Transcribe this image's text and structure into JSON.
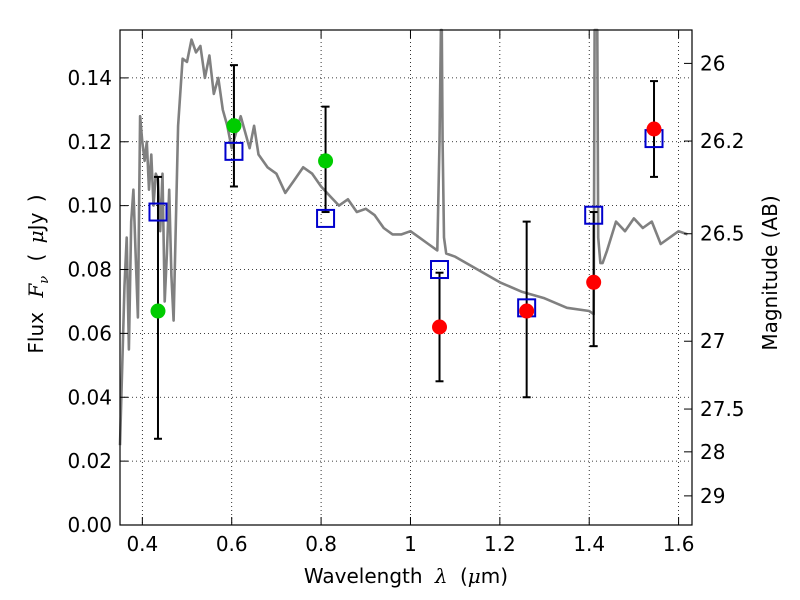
{
  "chart_data": {
    "type": "scatter",
    "xlabel_parts": [
      "Wavelength",
      "λ",
      "(",
      "μ",
      "m)"
    ],
    "ylabel_parts": [
      "Flux",
      "F",
      "ν",
      "(",
      "μ",
      "Jy",
      ")"
    ],
    "y2label": "Magnitude (AB)",
    "xlim": [
      0.35,
      1.63
    ],
    "ylim": [
      0.0,
      0.155
    ],
    "x_ticks": [
      0.4,
      0.6,
      0.8,
      1.0,
      1.2,
      1.4,
      1.6
    ],
    "x_tick_labels": [
      "0.4",
      "0.6",
      "0.8",
      "1",
      "1.2",
      "1.4",
      "1.6"
    ],
    "y_ticks": [
      0.0,
      0.02,
      0.04,
      0.06,
      0.08,
      0.1,
      0.12,
      0.14
    ],
    "y_tick_labels": [
      "0.00",
      "0.02",
      "0.04",
      "0.06",
      "0.08",
      "0.10",
      "0.12",
      "0.14"
    ],
    "y2_ticks": [
      26,
      26.2,
      26.5,
      27,
      27.5,
      28,
      29
    ],
    "y2_tick_labels": [
      "26",
      "26.2",
      "26.5",
      "27",
      "27.5",
      "28",
      "29"
    ],
    "grid": true,
    "colors": {
      "model": "#808080",
      "green": "#00cc00",
      "red": "#ff0000",
      "square": "#0000cc",
      "errorbar": "#000000"
    },
    "model_spectrum": {
      "x": [
        0.35,
        0.36,
        0.365,
        0.37,
        0.375,
        0.38,
        0.385,
        0.39,
        0.395,
        0.4,
        0.405,
        0.41,
        0.415,
        0.42,
        0.425,
        0.43,
        0.435,
        0.44,
        0.445,
        0.45,
        0.455,
        0.46,
        0.465,
        0.47,
        0.48,
        0.49,
        0.5,
        0.51,
        0.52,
        0.53,
        0.54,
        0.55,
        0.56,
        0.57,
        0.58,
        0.59,
        0.6,
        0.62,
        0.64,
        0.65,
        0.66,
        0.68,
        0.7,
        0.72,
        0.74,
        0.76,
        0.78,
        0.8,
        0.82,
        0.84,
        0.86,
        0.88,
        0.9,
        0.92,
        0.94,
        0.96,
        0.98,
        1.0,
        1.02,
        1.04,
        1.06,
        1.065,
        1.068,
        1.07,
        1.072,
        1.075,
        1.08,
        1.1,
        1.15,
        1.2,
        1.25,
        1.3,
        1.35,
        1.4,
        1.41,
        1.412,
        1.415,
        1.418,
        1.42,
        1.425,
        1.43,
        1.44,
        1.46,
        1.48,
        1.5,
        1.52,
        1.54,
        1.56,
        1.58,
        1.6,
        1.62
      ],
      "y": [
        0.025,
        0.075,
        0.09,
        0.055,
        0.095,
        0.105,
        0.085,
        0.065,
        0.128,
        0.12,
        0.114,
        0.12,
        0.105,
        0.116,
        0.1,
        0.11,
        0.108,
        0.092,
        0.11,
        0.07,
        0.085,
        0.105,
        0.078,
        0.064,
        0.125,
        0.146,
        0.145,
        0.152,
        0.148,
        0.15,
        0.14,
        0.147,
        0.135,
        0.14,
        0.13,
        0.125,
        0.118,
        0.128,
        0.118,
        0.125,
        0.116,
        0.112,
        0.11,
        0.104,
        0.108,
        0.112,
        0.11,
        0.106,
        0.103,
        0.1,
        0.102,
        0.098,
        0.099,
        0.097,
        0.093,
        0.091,
        0.091,
        0.092,
        0.09,
        0.088,
        0.086,
        0.12,
        0.16,
        0.16,
        0.12,
        0.09,
        0.085,
        0.084,
        0.08,
        0.076,
        0.073,
        0.071,
        0.068,
        0.067,
        0.066,
        0.16,
        0.16,
        0.16,
        0.09,
        0.082,
        0.082,
        0.086,
        0.095,
        0.092,
        0.096,
        0.093,
        0.095,
        0.088,
        0.09,
        0.092,
        0.091
      ]
    },
    "squares": {
      "x": [
        0.435,
        0.605,
        0.81,
        1.065,
        1.26,
        1.41,
        1.545
      ],
      "y": [
        0.098,
        0.117,
        0.096,
        0.08,
        0.068,
        0.097,
        0.121
      ]
    },
    "points": [
      {
        "x": 0.435,
        "y": 0.067,
        "color": "green",
        "yerr_low": 0.027,
        "yerr_high": 0.109
      },
      {
        "x": 0.605,
        "y": 0.125,
        "color": "green",
        "yerr_low": 0.106,
        "yerr_high": 0.144
      },
      {
        "x": 0.81,
        "y": 0.114,
        "color": "green",
        "yerr_low": 0.098,
        "yerr_high": 0.131
      },
      {
        "x": 1.065,
        "y": 0.062,
        "color": "red",
        "yerr_low": 0.045,
        "yerr_high": 0.079
      },
      {
        "x": 1.26,
        "y": 0.067,
        "color": "red",
        "yerr_low": 0.04,
        "yerr_high": 0.095
      },
      {
        "x": 1.41,
        "y": 0.076,
        "color": "red",
        "yerr_low": 0.056,
        "yerr_high": 0.098
      },
      {
        "x": 1.545,
        "y": 0.124,
        "color": "red",
        "yerr_low": 0.109,
        "yerr_high": 0.139
      }
    ]
  }
}
